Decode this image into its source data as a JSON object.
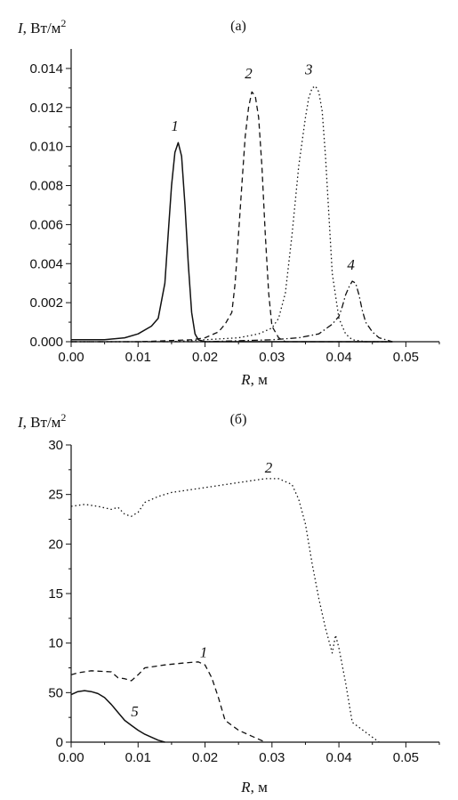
{
  "charts": [
    {
      "panel_label": "(а)",
      "ylabel_var": "I",
      "ylabel_unit": ", Вт/м",
      "ylabel_sup": "2",
      "xlabel_var": "R",
      "xlabel_unit": ", м",
      "x_ticks": [
        "0.00",
        "0.01",
        "0.02",
        "0.03",
        "0.04",
        "0.05"
      ],
      "y_ticks": [
        "0.000",
        "0.002",
        "0.004",
        "0.006",
        "0.008",
        "0.010",
        "0.012",
        "0.014"
      ]
    },
    {
      "panel_label": "(б)",
      "ylabel_var": "I",
      "ylabel_unit": ", Вт/м",
      "ylabel_sup": "2",
      "xlabel_var": "R",
      "xlabel_unit": ", м",
      "x_ticks": [
        "0.00",
        "0.01",
        "0.02",
        "0.03",
        "0.04",
        "0.05"
      ],
      "y_ticks": [
        "0",
        "5",
        "10",
        "15",
        "20",
        "25",
        "30"
      ],
      "y_ticks_lower_override": [
        "0",
        "50"
      ]
    }
  ],
  "chart_data": [
    {
      "type": "line",
      "title": "(а)",
      "xlabel": "R, м",
      "ylabel": "I, Вт/м2",
      "xlim": [
        0,
        0.055
      ],
      "ylim": [
        0,
        0.015
      ],
      "grid": false,
      "series": [
        {
          "name": "1",
          "style": "solid",
          "x": [
            0.0,
            0.005,
            0.008,
            0.01,
            0.012,
            0.013,
            0.014,
            0.0145,
            0.015,
            0.0155,
            0.016,
            0.0165,
            0.017,
            0.0175,
            0.018,
            0.0185,
            0.019,
            0.02,
            0.03,
            0.048
          ],
          "y": [
            0.0001,
            0.0001,
            0.0002,
            0.0004,
            0.0008,
            0.0012,
            0.003,
            0.0055,
            0.008,
            0.0097,
            0.0102,
            0.0095,
            0.007,
            0.004,
            0.0015,
            0.0004,
            0.0001,
            0.0,
            0.0,
            0.0
          ]
        },
        {
          "name": "2",
          "style": "dashed",
          "x": [
            0.0,
            0.01,
            0.018,
            0.02,
            0.022,
            0.023,
            0.024,
            0.0245,
            0.025,
            0.0255,
            0.026,
            0.0265,
            0.027,
            0.0275,
            0.028,
            0.0285,
            0.029,
            0.0295,
            0.03,
            0.031,
            0.032,
            0.048
          ],
          "y": [
            0.0,
            0.0,
            0.0001,
            0.0002,
            0.0005,
            0.0009,
            0.0015,
            0.003,
            0.0055,
            0.008,
            0.0105,
            0.012,
            0.0128,
            0.0126,
            0.0115,
            0.009,
            0.0055,
            0.0025,
            0.0008,
            0.0002,
            0.0,
            0.0
          ]
        },
        {
          "name": "3",
          "style": "dotted",
          "x": [
            0.0,
            0.015,
            0.02,
            0.025,
            0.028,
            0.03,
            0.031,
            0.032,
            0.033,
            0.034,
            0.035,
            0.0355,
            0.036,
            0.0365,
            0.037,
            0.0375,
            0.038,
            0.0385,
            0.039,
            0.04,
            0.041,
            0.042,
            0.044,
            0.048
          ],
          "y": [
            0.0,
            0.0,
            0.0001,
            0.0002,
            0.0004,
            0.0007,
            0.0012,
            0.0025,
            0.0055,
            0.009,
            0.0115,
            0.0125,
            0.013,
            0.0131,
            0.0128,
            0.0118,
            0.0095,
            0.0065,
            0.0035,
            0.0012,
            0.0004,
            0.0001,
            0.0,
            0.0
          ]
        },
        {
          "name": "4",
          "style": "dashdot",
          "x": [
            0.0,
            0.02,
            0.03,
            0.034,
            0.037,
            0.039,
            0.04,
            0.0405,
            0.041,
            0.0415,
            0.042,
            0.0425,
            0.043,
            0.0435,
            0.044,
            0.045,
            0.046,
            0.047,
            0.048
          ],
          "y": [
            0.0,
            0.0,
            0.0001,
            0.0002,
            0.0004,
            0.0009,
            0.0013,
            0.0018,
            0.0024,
            0.0028,
            0.0031,
            0.003,
            0.0024,
            0.0016,
            0.001,
            0.0005,
            0.0002,
            0.0001,
            0.0
          ]
        }
      ],
      "annotations": [
        {
          "text": "1",
          "x": 0.0155,
          "y": 0.0108
        },
        {
          "text": "2",
          "x": 0.0265,
          "y": 0.0135
        },
        {
          "text": "3",
          "x": 0.0355,
          "y": 0.0137
        },
        {
          "text": "4",
          "x": 0.0418,
          "y": 0.0037
        }
      ]
    },
    {
      "type": "line",
      "title": "(б)",
      "xlabel": "R, м",
      "ylabel": "I, Вт/м2",
      "xlim": [
        0,
        0.055
      ],
      "ylim": [
        0,
        30
      ],
      "grid": false,
      "series": [
        {
          "name": "2",
          "style": "dotted",
          "x": [
            0.0,
            0.002,
            0.004,
            0.006,
            0.007,
            0.008,
            0.009,
            0.01,
            0.011,
            0.013,
            0.015,
            0.018,
            0.021,
            0.024,
            0.027,
            0.029,
            0.031,
            0.033,
            0.034,
            0.035,
            0.036,
            0.037,
            0.038,
            0.039,
            0.0395,
            0.04,
            0.041,
            0.042,
            0.044,
            0.046
          ],
          "y": [
            23.8,
            24.0,
            23.8,
            23.5,
            23.7,
            23.0,
            22.8,
            23.2,
            24.2,
            24.8,
            25.2,
            25.5,
            25.8,
            26.1,
            26.4,
            26.6,
            26.6,
            26.0,
            24.5,
            22.0,
            18.0,
            14.5,
            11.5,
            9.0,
            10.8,
            9.5,
            6.0,
            2.0,
            1.0,
            0.0
          ]
        },
        {
          "name": "1",
          "style": "dashed",
          "x": [
            0.0,
            0.001,
            0.003,
            0.006,
            0.007,
            0.008,
            0.009,
            0.01,
            0.011,
            0.014,
            0.017,
            0.019,
            0.02,
            0.021,
            0.022,
            0.023,
            0.025,
            0.027,
            0.029
          ],
          "y": [
            6.8,
            7.0,
            7.2,
            7.1,
            6.5,
            6.4,
            6.2,
            6.8,
            7.5,
            7.8,
            8.0,
            8.1,
            7.8,
            6.5,
            4.5,
            2.2,
            1.2,
            0.6,
            0.0
          ]
        },
        {
          "name": "5",
          "style": "solid",
          "x": [
            0.0,
            0.001,
            0.002,
            0.003,
            0.004,
            0.005,
            0.006,
            0.007,
            0.008,
            0.009,
            0.01,
            0.011,
            0.012,
            0.013,
            0.014
          ],
          "y": [
            4.8,
            5.1,
            5.2,
            5.1,
            4.9,
            4.5,
            3.8,
            3.0,
            2.2,
            1.7,
            1.2,
            0.8,
            0.5,
            0.2,
            0.0
          ]
        }
      ],
      "annotations": [
        {
          "text": "2",
          "x": 0.0295,
          "y": 27.2
        },
        {
          "text": "1",
          "x": 0.0198,
          "y": 8.6
        },
        {
          "text": "5",
          "x": 0.0095,
          "y": 2.6
        }
      ]
    }
  ]
}
